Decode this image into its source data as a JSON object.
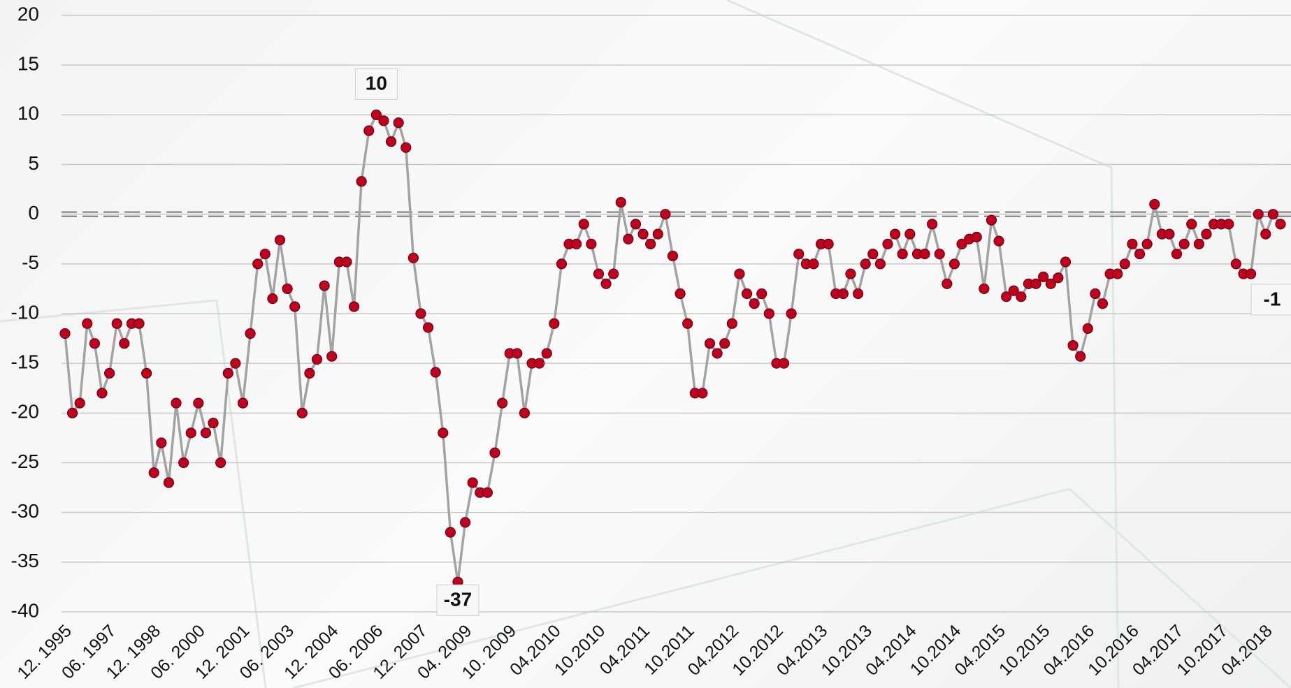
{
  "chart_data": {
    "type": "line",
    "categories": [
      "12. 1995",
      null,
      null,
      null,
      null,
      null,
      "06. 1997",
      null,
      null,
      null,
      null,
      null,
      "12. 1998",
      null,
      null,
      null,
      null,
      null,
      "06. 2000",
      null,
      null,
      null,
      null,
      null,
      "12. 2001",
      null,
      null,
      null,
      null,
      null,
      "06. 2003",
      null,
      null,
      null,
      null,
      null,
      "12. 2004",
      null,
      null,
      null,
      null,
      null,
      "06. 2006",
      null,
      null,
      null,
      null,
      null,
      "12. 2007",
      null,
      null,
      null,
      null,
      null,
      "04. 2009",
      null,
      null,
      null,
      null,
      null,
      "10. 2009",
      null,
      null,
      null,
      null,
      null,
      "04.2010",
      null,
      null,
      null,
      null,
      null,
      "10.2010",
      null,
      null,
      null,
      null,
      null,
      "04.2011",
      null,
      null,
      null,
      null,
      null,
      "10.2011",
      null,
      null,
      null,
      null,
      null,
      "04.2012",
      null,
      null,
      null,
      null,
      null,
      "10.2012",
      null,
      null,
      null,
      null,
      null,
      "04.2013",
      null,
      null,
      null,
      null,
      null,
      "10.2013",
      null,
      null,
      null,
      null,
      null,
      "04.2014",
      null,
      null,
      null,
      null,
      null,
      "10.2014",
      null,
      null,
      null,
      null,
      null,
      "04.2015",
      null,
      null,
      null,
      null,
      null,
      "10.2015",
      null,
      null,
      null,
      null,
      null,
      "04.2016",
      null,
      null,
      null,
      null,
      null,
      "10.2016",
      null,
      null,
      null,
      null,
      null,
      "04.2017",
      null,
      null,
      null,
      null,
      null,
      "10.2017",
      null,
      null,
      null,
      null,
      null,
      "04.2018",
      null,
      null
    ],
    "values": [
      -12,
      -20,
      -19,
      -11,
      -13,
      -18,
      -16,
      -11,
      -13,
      -11,
      -11,
      -16,
      -26,
      -23,
      -27,
      -19,
      -25,
      -22,
      -19,
      -22,
      -21,
      -25,
      -16,
      -15,
      -19,
      -12,
      -5,
      -4,
      -8.5,
      -2.6,
      -7.5,
      -9.3,
      -20,
      -16,
      -14.6,
      -7.2,
      -14.3,
      -4.8,
      -4.8,
      -9.3,
      3.3,
      8.4,
      10,
      9.4,
      7.3,
      9.2,
      6.7,
      -4.4,
      -10,
      -11.4,
      -15.9,
      -22,
      -32,
      -37,
      -31,
      -27,
      -28,
      -28,
      -24,
      -19,
      -14,
      -14,
      -20,
      -15,
      -15,
      -14,
      -11,
      -5,
      -3,
      -3,
      -1,
      -3,
      -6,
      -7,
      -6,
      1.2,
      -2.5,
      -1,
      -2,
      -3,
      -2,
      0,
      -4.2,
      -8,
      -11,
      -18,
      -18,
      -13,
      -14,
      -13,
      -11,
      -6,
      -8,
      -9,
      -8,
      -10,
      -15,
      -15,
      -10,
      -4,
      -5,
      -5,
      -3,
      -3,
      -8,
      -8,
      -6,
      -8,
      -5,
      -4,
      -5,
      -3,
      -2,
      -4,
      -2,
      -4,
      -4,
      -1,
      -4,
      -7,
      -5,
      -3,
      -2.5,
      -2.3,
      -7.5,
      -0.6,
      -2.7,
      -8.3,
      -7.7,
      -8.3,
      -7,
      -7,
      -6.3,
      -7,
      -6.4,
      -4.8,
      -13.2,
      -14.3,
      -11.5,
      -8,
      -9,
      -6,
      -6,
      -5,
      -3,
      -4,
      -3,
      1,
      -2,
      -2,
      -4,
      -3,
      -1,
      -3,
      -2,
      -1,
      -1,
      -1,
      -5,
      -6,
      -6,
      0,
      -2,
      0,
      -1
    ],
    "value_labels": [
      null,
      null,
      null,
      null,
      null,
      null,
      null,
      null,
      null,
      null,
      null,
      null,
      null,
      null,
      null,
      null,
      null,
      null,
      null,
      null,
      null,
      null,
      null,
      null,
      null,
      null,
      null,
      null,
      null,
      null,
      null,
      null,
      null,
      null,
      null,
      null,
      null,
      null,
      null,
      null,
      null,
      null,
      "10",
      null,
      null,
      null,
      null,
      null,
      null,
      null,
      null,
      null,
      null,
      "-37",
      null,
      null,
      null,
      null,
      null,
      null,
      null,
      null,
      null,
      null,
      null,
      null,
      null,
      null,
      null,
      null,
      null,
      null,
      null,
      null,
      null,
      null,
      null,
      null,
      null,
      null,
      null,
      null,
      null,
      null,
      null,
      null,
      null,
      null,
      null,
      null,
      null,
      null,
      null,
      null,
      null,
      null,
      null,
      null,
      null,
      null,
      null,
      null,
      null,
      null,
      null,
      null,
      null,
      null,
      null,
      null,
      null,
      null,
      null,
      null,
      null,
      null,
      null,
      null,
      null,
      null,
      null,
      null,
      null,
      null,
      null,
      null,
      null,
      null,
      null,
      null,
      null,
      null,
      null,
      null,
      null,
      null,
      null,
      null,
      null,
      null,
      null,
      null,
      null,
      null,
      null,
      null,
      null,
      null,
      null,
      null,
      null,
      null,
      null,
      null,
      null,
      null,
      null,
      null,
      null,
      null,
      null,
      null,
      null,
      null,
      "-1"
    ],
    "color": "#c0001f",
    "line_color": "#a3a3a3",
    "ylim": [
      -40,
      20
    ],
    "yticks": [
      20,
      15,
      10,
      5,
      0,
      -5,
      -10,
      -15,
      -20,
      -25,
      -30,
      -35,
      -40
    ],
    "grid": true,
    "hline": 0
  }
}
